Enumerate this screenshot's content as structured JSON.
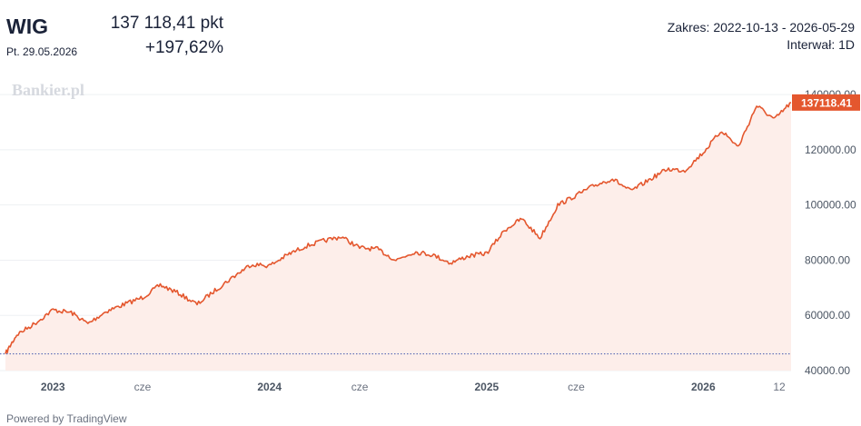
{
  "header": {
    "ticker": "WIG",
    "date": "Pt. 29.05.2026",
    "price": "137 118,41 pkt",
    "change": "+197,62%",
    "range": "Zakres: 2022-10-13 - 2026-05-29",
    "interval": "Interwał: 1D"
  },
  "watermark": "Bankier.pl",
  "footer": "Powered by TradingView",
  "colors": {
    "line": "#e4572e",
    "fill": "#fdeeea",
    "baseline": "#5b6bb5",
    "label_bg": "#e4572e",
    "grid": "#eef0f3"
  },
  "chart_data": {
    "type": "area",
    "title": "",
    "xlabel": "",
    "ylabel": "",
    "ylim": [
      40000,
      143000
    ],
    "grid": true,
    "legend": "none",
    "y_ticks": [
      "140000.00",
      "120000.00",
      "100000.00",
      "80000.00",
      "60000.00",
      "40000.00"
    ],
    "x_ticks": [
      "2023",
      "cze",
      "2024",
      "cze",
      "2025",
      "cze",
      "2026",
      "12"
    ],
    "baseline_value": 46060,
    "last_value_label": "137118.41",
    "series": [
      {
        "x": [
          "2022-10-13",
          "2022-11-01",
          "2022-12-01",
          "2023-01-01",
          "2023-02-01",
          "2023-03-01",
          "2023-04-01",
          "2023-05-01",
          "2023-06-01",
          "2023-07-01",
          "2023-08-01",
          "2023-09-01",
          "2023-10-01",
          "2023-11-01",
          "2023-12-01",
          "2024-01-01",
          "2024-02-01",
          "2024-03-01",
          "2024-04-01",
          "2024-05-01",
          "2024-06-01",
          "2024-07-01",
          "2024-08-01",
          "2024-09-01",
          "2024-10-01",
          "2024-11-01",
          "2024-12-01",
          "2025-01-01",
          "2025-02-01",
          "2025-03-01",
          "2025-04-01",
          "2025-05-01",
          "2025-06-01",
          "2025-07-01",
          "2025-08-01",
          "2025-09-01",
          "2025-10-01",
          "2025-11-01",
          "2025-12-01",
          "2026-01-01",
          "2026-02-01",
          "2026-03-01",
          "2026-04-01",
          "2026-05-01",
          "2026-05-29"
        ],
        "values": [
          46060,
          53000,
          57000,
          62000,
          61000,
          57000,
          61500,
          64000,
          66500,
          71000,
          68000,
          64000,
          69000,
          74000,
          78500,
          78000,
          82000,
          85000,
          87000,
          88500,
          84500,
          84000,
          80000,
          83000,
          82000,
          79000,
          81500,
          82500,
          91000,
          95000,
          88000,
          100000,
          103500,
          107000,
          109500,
          105000,
          109000,
          113000,
          112500,
          119000,
          127000,
          121000,
          136000,
          131000,
          137118.41
        ]
      }
    ]
  }
}
